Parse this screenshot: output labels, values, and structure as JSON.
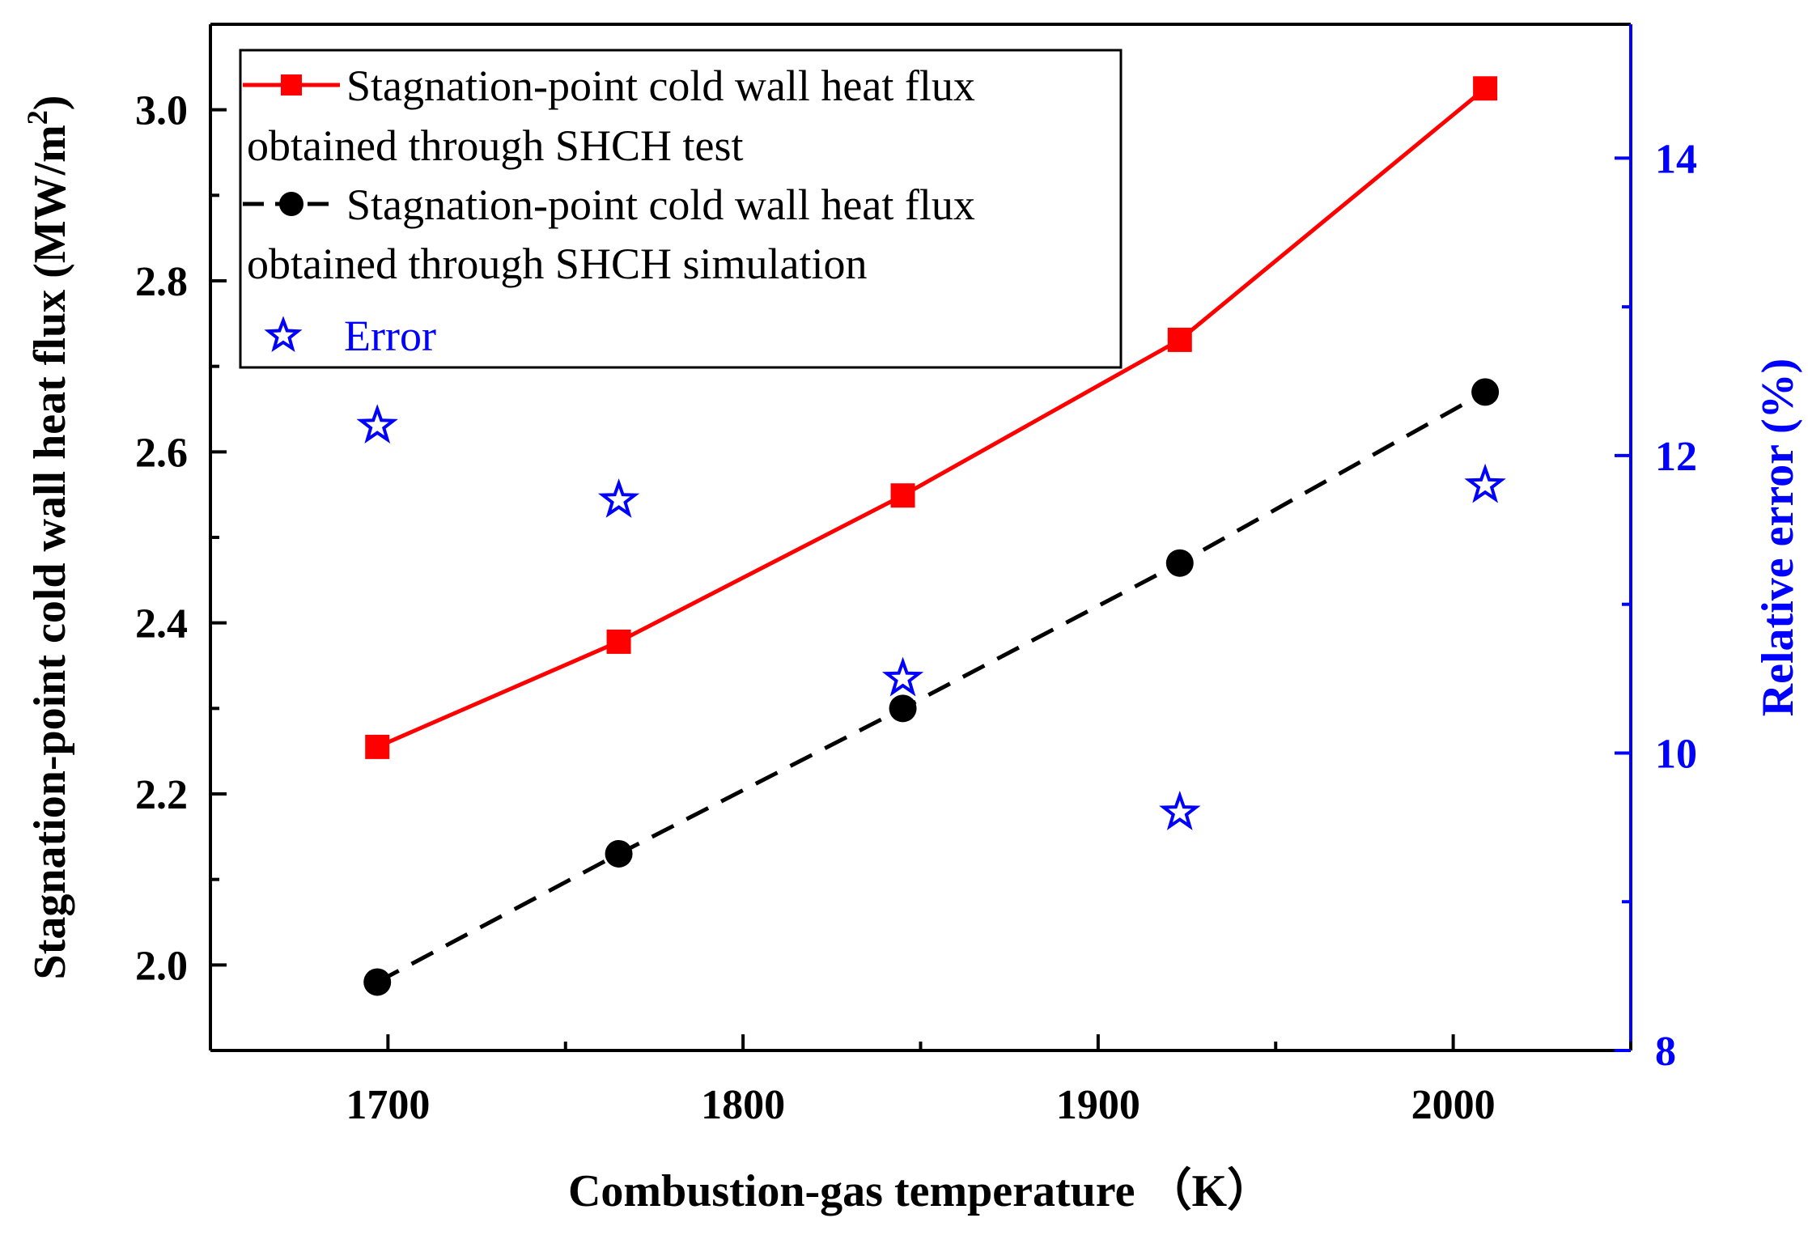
{
  "chart_data": {
    "type": "line",
    "title": "",
    "xlabel": "Combustion-gas temperature （K）",
    "ylabel": "Stagnation-point cold wall heat flux (MW/m",
    "ylabel_sup": "2",
    "ylabel_close": ")",
    "y2label": "Relative error (%)",
    "xlim": [
      1650,
      2050
    ],
    "ylim": [
      1.9,
      3.1
    ],
    "y2lim": [
      8,
      14.9
    ],
    "xticks": [
      1700,
      1800,
      1900,
      2000
    ],
    "xtick_labels": [
      "1700",
      "1800",
      "1900",
      "2000"
    ],
    "yticks": [
      2.0,
      2.2,
      2.4,
      2.6,
      2.8,
      3.0
    ],
    "ytick_labels": [
      "2.0",
      "2.2",
      "2.4",
      "2.6",
      "2.8",
      "3.0"
    ],
    "y2ticks": [
      8,
      10,
      12,
      14
    ],
    "y2tick_labels": [
      "8",
      "10",
      "12",
      "14"
    ],
    "x": [
      1697,
      1765,
      1845,
      1923,
      2009
    ],
    "series": [
      {
        "name": "Stagnation-point cold wall heat flux obtained through SHCH test",
        "legend_line1": "Stagnation-point cold wall heat flux",
        "legend_line2": "obtained through SHCH test",
        "axis": "left",
        "style": "solid-square",
        "color": "#ff0000",
        "values": [
          2.255,
          2.378,
          2.549,
          2.731,
          3.025
        ]
      },
      {
        "name": "Stagnation-point cold wall heat flux obtained through SHCH simulation",
        "legend_line1": "Stagnation-point cold wall heat flux",
        "legend_line2": "obtained through SHCH simulation",
        "axis": "left",
        "style": "dashed-circle",
        "color": "#000000",
        "values": [
          1.98,
          2.13,
          2.3,
          2.47,
          2.67
        ]
      },
      {
        "name": "Error",
        "legend_line1": "Error",
        "axis": "right",
        "style": "star",
        "color": "#0000ff",
        "values": [
          12.2,
          11.7,
          10.5,
          9.6,
          11.8
        ]
      }
    ],
    "legend_position": "top-left",
    "grid": false
  }
}
